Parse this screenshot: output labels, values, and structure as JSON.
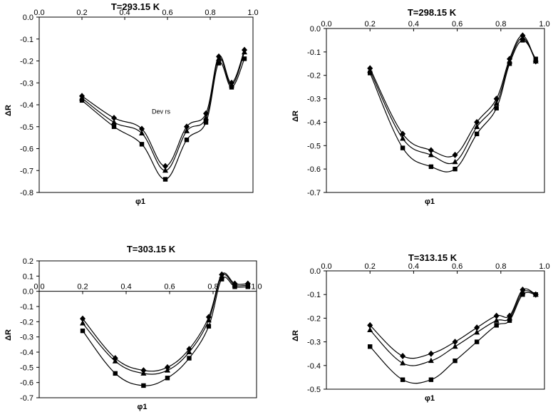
{
  "chart_data": [
    {
      "type": "line",
      "title": "T=293.15 K",
      "xlabel": "φ1",
      "ylabel": "ΔR",
      "xlim": [
        0,
        1
      ],
      "ylim": [
        -0.8,
        0
      ],
      "xticks": [
        "0.0",
        "0.2",
        "0.4",
        "0.6",
        "0.8",
        "1.0"
      ],
      "yticks": [
        "0.0",
        "-0.1",
        "-0.2",
        "-0.3",
        "-0.4",
        "-0.5",
        "-0.6",
        "-0.7",
        "-0.8"
      ],
      "grid": false,
      "annotations": [
        "Dev rs"
      ],
      "x": [
        0.2,
        0.35,
        0.48,
        0.59,
        0.69,
        0.78,
        0.84,
        0.9,
        0.96
      ],
      "series": [
        {
          "marker": "diamond",
          "values": [
            -0.36,
            -0.46,
            -0.51,
            -0.68,
            -0.5,
            -0.44,
            -0.18,
            -0.3,
            -0.15
          ]
        },
        {
          "marker": "triangle",
          "values": [
            -0.37,
            -0.48,
            -0.53,
            -0.7,
            -0.52,
            -0.46,
            -0.19,
            -0.31,
            -0.16
          ]
        },
        {
          "marker": "square",
          "values": [
            -0.38,
            -0.5,
            -0.58,
            -0.74,
            -0.56,
            -0.48,
            -0.21,
            -0.32,
            -0.19
          ]
        }
      ]
    },
    {
      "type": "line",
      "title": "T=298.15 K",
      "xlabel": "φ1",
      "ylabel": "ΔR",
      "xlim": [
        0,
        1
      ],
      "ylim": [
        -0.7,
        0
      ],
      "xticks": [
        "0.0",
        "0.2",
        "0.4",
        "0.6",
        "0.8",
        "1.0"
      ],
      "yticks": [
        "0.0",
        "-0.1",
        "-0.2",
        "-0.3",
        "-0.4",
        "-0.5",
        "-0.6",
        "-0.7"
      ],
      "grid": false,
      "x": [
        0.2,
        0.35,
        0.48,
        0.59,
        0.69,
        0.78,
        0.84,
        0.9,
        0.96
      ],
      "series": [
        {
          "marker": "diamond",
          "values": [
            -0.17,
            -0.45,
            -0.52,
            -0.54,
            -0.4,
            -0.3,
            -0.13,
            -0.03,
            -0.14
          ]
        },
        {
          "marker": "triangle",
          "values": [
            -0.18,
            -0.47,
            -0.54,
            -0.57,
            -0.42,
            -0.32,
            -0.14,
            -0.04,
            -0.14
          ]
        },
        {
          "marker": "square",
          "values": [
            -0.19,
            -0.51,
            -0.59,
            -0.6,
            -0.45,
            -0.34,
            -0.15,
            -0.05,
            -0.13
          ]
        }
      ]
    },
    {
      "type": "line",
      "title": "T=303.15 K",
      "xlabel": "φ1",
      "ylabel": "ΔR",
      "xlim": [
        0,
        1
      ],
      "ylim": [
        -0.7,
        0.2
      ],
      "xticks": [
        "0.0",
        "0.2",
        "0.4",
        "0.6",
        "0.8",
        "1.0"
      ],
      "yticks": [
        "0.2",
        "0.1",
        "0.0",
        "-0.1",
        "-0.2",
        "-0.3",
        "-0.4",
        "-0.5",
        "-0.6",
        "-0.7"
      ],
      "grid": false,
      "x": [
        0.2,
        0.35,
        0.48,
        0.59,
        0.69,
        0.78,
        0.84,
        0.9,
        0.96
      ],
      "series": [
        {
          "marker": "diamond",
          "values": [
            -0.18,
            -0.44,
            -0.52,
            -0.5,
            -0.38,
            -0.17,
            0.11,
            0.05,
            0.05
          ]
        },
        {
          "marker": "triangle",
          "values": [
            -0.21,
            -0.46,
            -0.54,
            -0.52,
            -0.4,
            -0.19,
            0.1,
            0.04,
            0.04
          ]
        },
        {
          "marker": "square",
          "values": [
            -0.26,
            -0.54,
            -0.62,
            -0.57,
            -0.44,
            -0.23,
            0.08,
            0.03,
            0.03
          ]
        }
      ]
    },
    {
      "type": "line",
      "title": "T=313.15 K",
      "xlabel": "φ1",
      "ylabel": "ΔR",
      "xlim": [
        0,
        1
      ],
      "ylim": [
        -0.5,
        0
      ],
      "xticks": [
        "0.0",
        "0.2",
        "0.4",
        "0.6",
        "0.8",
        "1.0"
      ],
      "yticks": [
        "0.0",
        "-0.1",
        "-0.2",
        "-0.3",
        "-0.4",
        "-0.5"
      ],
      "grid": false,
      "x": [
        0.2,
        0.35,
        0.48,
        0.59,
        0.69,
        0.78,
        0.84,
        0.9,
        0.96
      ],
      "series": [
        {
          "marker": "diamond",
          "values": [
            -0.23,
            -0.36,
            -0.35,
            -0.3,
            -0.24,
            -0.19,
            -0.19,
            -0.08,
            -0.1
          ]
        },
        {
          "marker": "triangle",
          "values": [
            -0.25,
            -0.39,
            -0.38,
            -0.32,
            -0.26,
            -0.21,
            -0.2,
            -0.09,
            -0.1
          ]
        },
        {
          "marker": "square",
          "values": [
            -0.32,
            -0.46,
            -0.46,
            -0.38,
            -0.3,
            -0.23,
            -0.21,
            -0.1,
            -0.1
          ]
        }
      ]
    }
  ]
}
